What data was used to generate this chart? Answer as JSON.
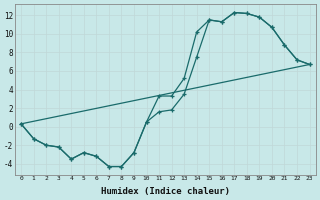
{
  "xlabel": "Humidex (Indice chaleur)",
  "background_color": "#c8e8e8",
  "grid_color": "#c0d8d8",
  "line_color": "#1a6b6b",
  "xlim": [
    -0.5,
    23.5
  ],
  "ylim": [
    -5.2,
    13.2
  ],
  "yticks": [
    -4,
    -2,
    0,
    2,
    4,
    6,
    8,
    10,
    12
  ],
  "xticks": [
    0,
    1,
    2,
    3,
    4,
    5,
    6,
    7,
    8,
    9,
    10,
    11,
    12,
    13,
    14,
    15,
    16,
    17,
    18,
    19,
    20,
    21,
    22,
    23
  ],
  "line1_x": [
    0,
    1,
    2,
    3,
    4,
    5,
    6,
    7,
    8,
    9,
    10,
    11,
    12,
    13,
    14,
    15,
    16,
    17,
    18,
    19,
    20,
    21,
    22,
    23
  ],
  "line1_y": [
    0.3,
    -1.3,
    -2.0,
    -2.2,
    -3.5,
    -2.8,
    -3.2,
    -4.3,
    -4.3,
    -2.8,
    0.5,
    1.6,
    1.8,
    3.5,
    7.5,
    11.5,
    11.3,
    12.3,
    12.2,
    11.8,
    10.7,
    8.8,
    7.2,
    6.7
  ],
  "line2_x": [
    0,
    1,
    2,
    3,
    4,
    5,
    6,
    7,
    8,
    9,
    10,
    11,
    12,
    13,
    14,
    15,
    16,
    17,
    18,
    19,
    20,
    21,
    22,
    23
  ],
  "line2_y": [
    0.3,
    -1.3,
    -2.0,
    -2.2,
    -3.5,
    -2.8,
    -3.2,
    -4.3,
    -4.3,
    -2.8,
    0.5,
    3.3,
    3.3,
    5.2,
    10.2,
    11.5,
    11.3,
    12.3,
    12.2,
    11.8,
    10.7,
    8.8,
    7.2,
    6.7
  ],
  "line3_x": [
    0,
    23
  ],
  "line3_y": [
    0.3,
    6.7
  ]
}
